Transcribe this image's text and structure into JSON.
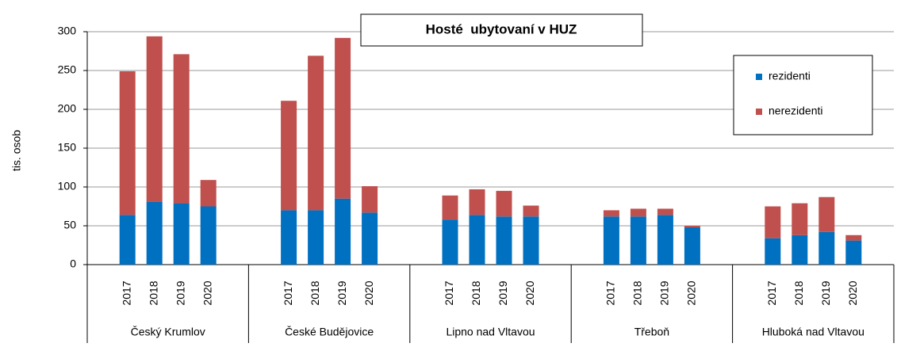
{
  "chart_data": {
    "type": "stacked_bar",
    "title": "Hosté  ubytovaní v HUZ",
    "ylabel": "tis. osob",
    "categories": [
      "2017",
      "2018",
      "2019",
      "2020",
      "2017",
      "2018",
      "2019",
      "2020",
      "2017",
      "2018",
      "2019",
      "2020",
      "2017",
      "2018",
      "2019",
      "2020",
      "2017",
      "2018",
      "2019",
      "2020"
    ],
    "groups": [
      "Český Krumlov",
      "České Budějovice",
      "Lipno nad Vltavou",
      "Třeboň",
      "Hluboká nad Vltavou"
    ],
    "series": [
      {
        "name": "rezidenti",
        "color": "#0070c0",
        "values": [
          64,
          81,
          79,
          75,
          70,
          70,
          85,
          67,
          58,
          64,
          62,
          62,
          62,
          62,
          64,
          48,
          34,
          38,
          42,
          31
        ]
      },
      {
        "name": "nerezidenti",
        "color": "#c0504d",
        "values": [
          185,
          213,
          192,
          34,
          141,
          199,
          207,
          34,
          31,
          33,
          33,
          14,
          8,
          10,
          8,
          2,
          41,
          41,
          45,
          7
        ]
      }
    ],
    "ylim": [
      0,
      300
    ],
    "yticks": [
      0,
      50,
      100,
      150,
      200,
      250,
      300
    ],
    "grid": true,
    "legend": "upper right"
  }
}
